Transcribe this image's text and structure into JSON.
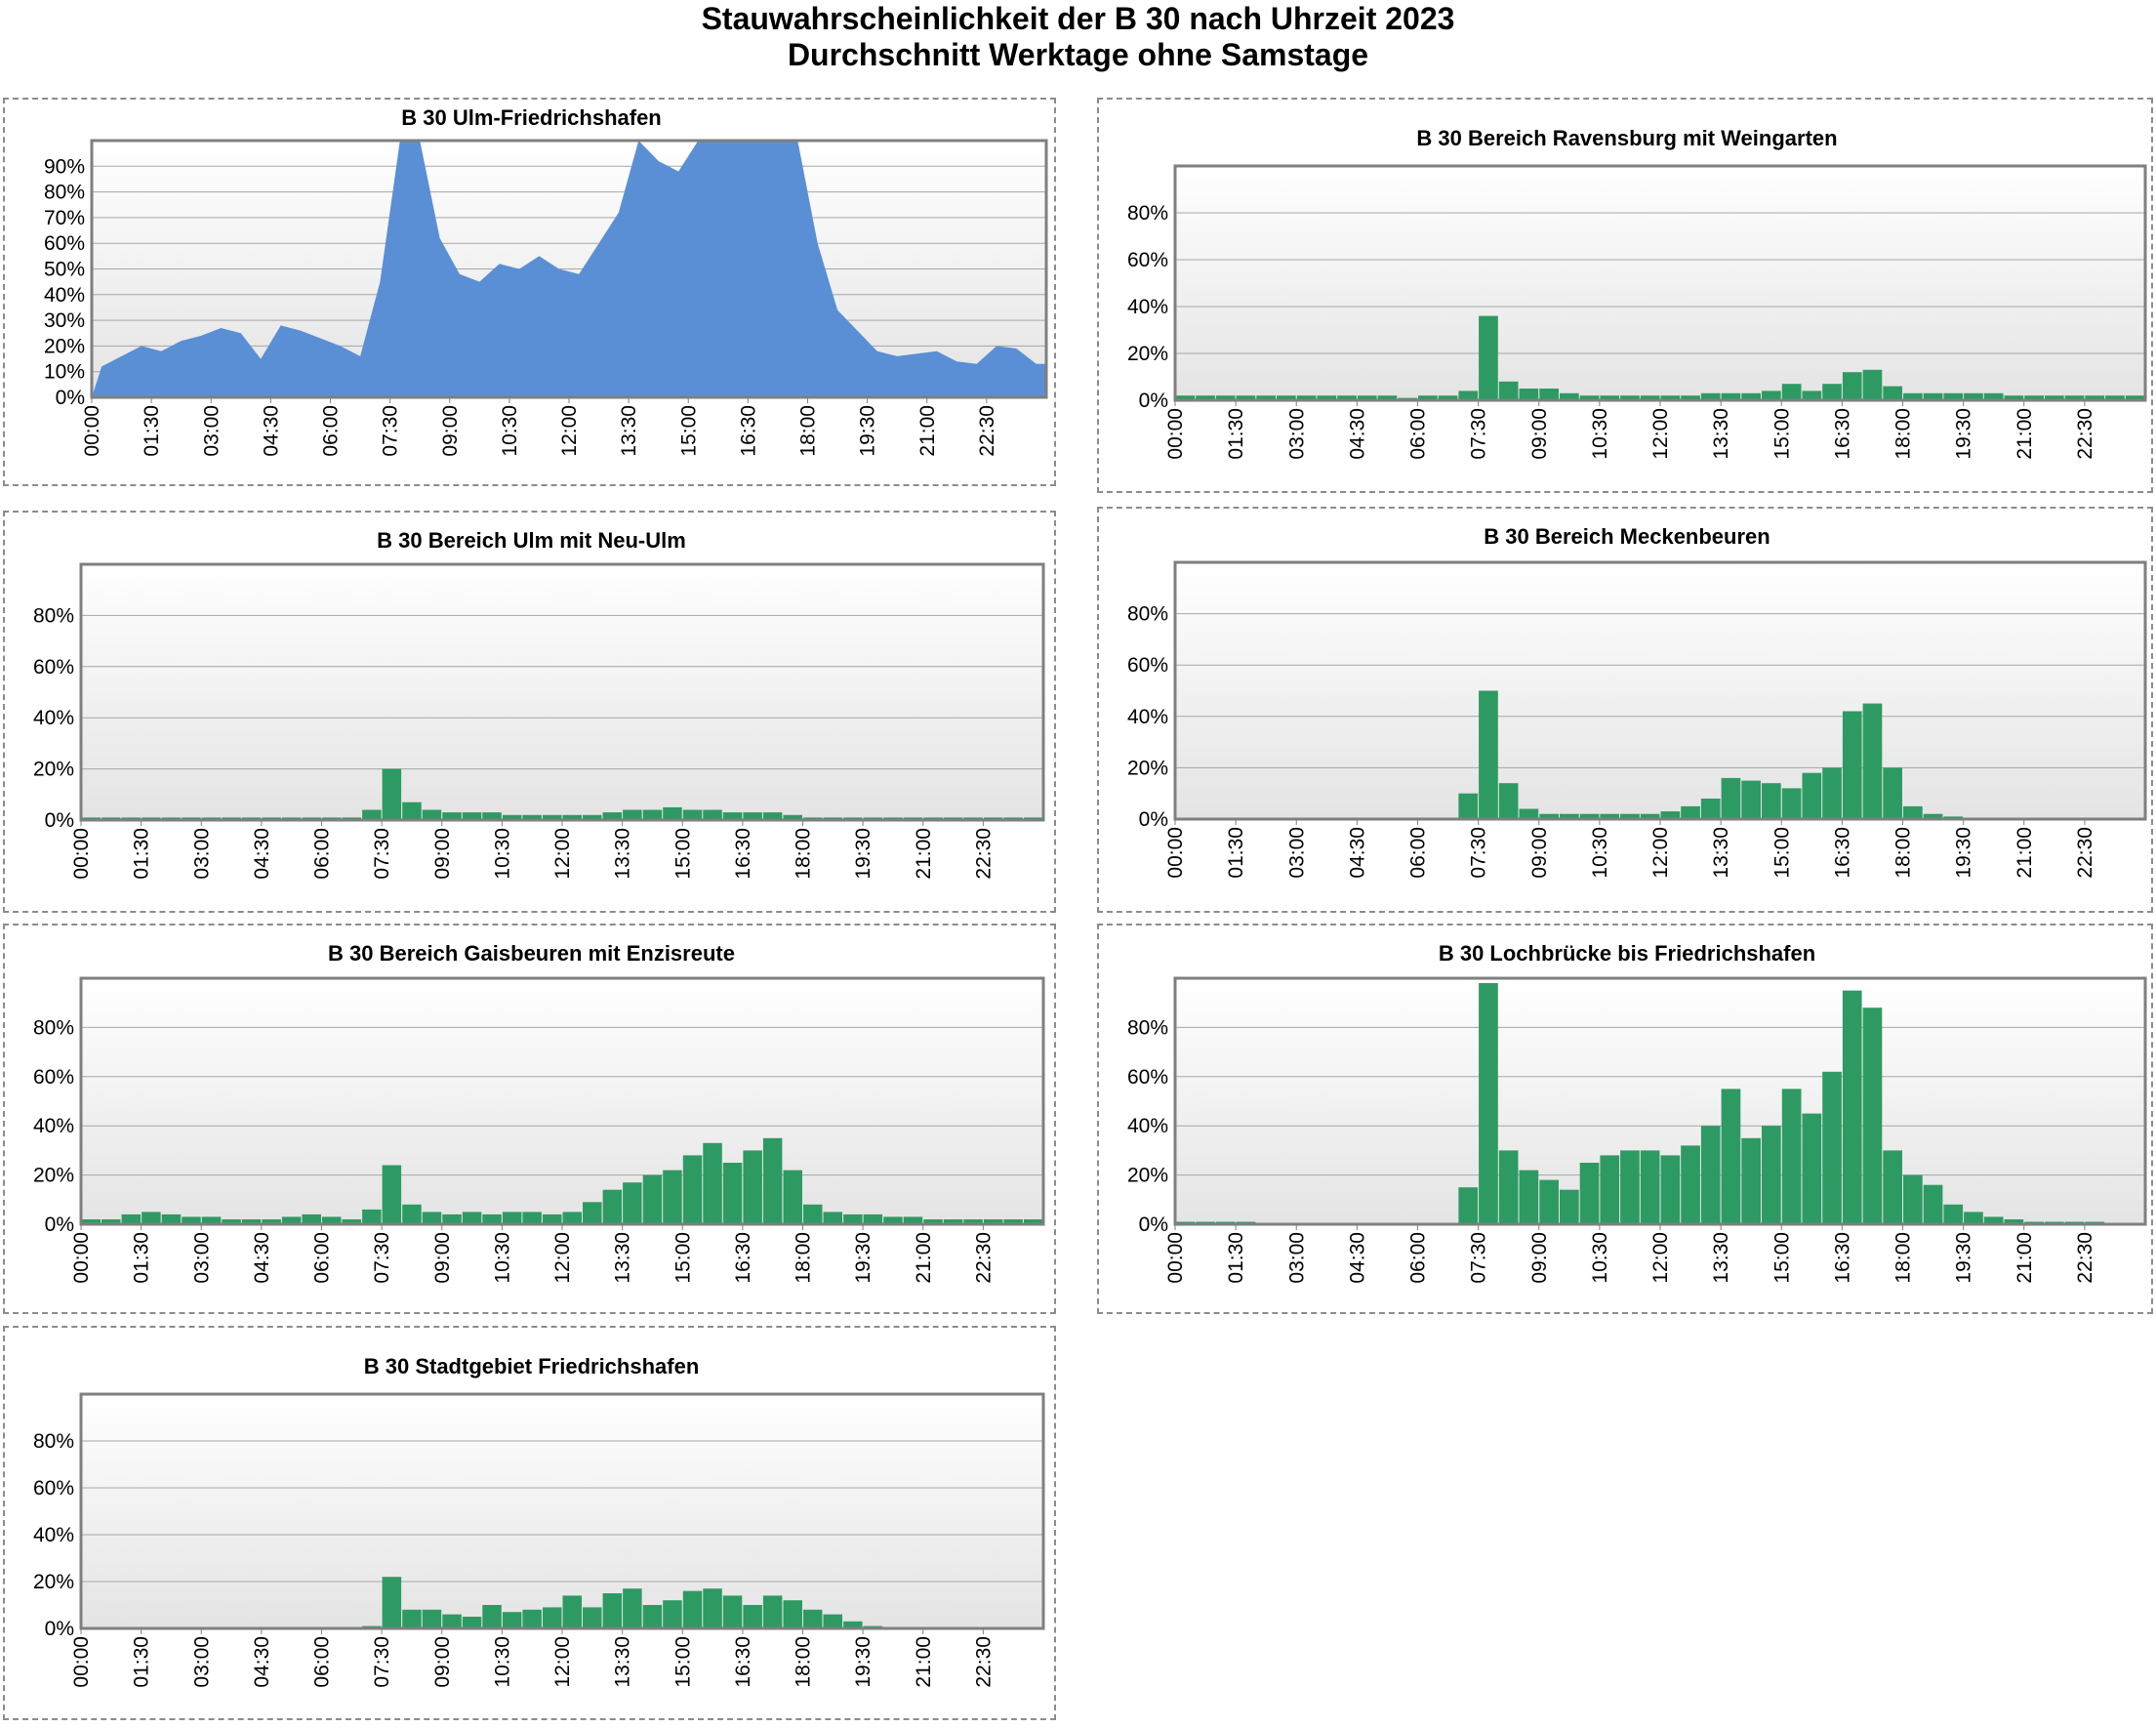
{
  "title": "Stauwahrscheinlichkeit der B 30 nach Uhrzeit 2023",
  "subtitle": "Durchschnitt Werktage ohne Samstage",
  "colors": {
    "blue": "#5a8fd6",
    "green": "#2e9a63",
    "frame": "#7f7f7f",
    "grid": "#a6a6a6"
  },
  "chart_data": [
    {
      "type": "area",
      "title": "B 30 Ulm-Friedrichshafen",
      "color": "#5a8fd6",
      "ylim": [
        0,
        100
      ],
      "yticks": [
        "0%",
        "10%",
        "20%",
        "30%",
        "40%",
        "50%",
        "60%",
        "70%",
        "80%",
        "90%"
      ],
      "xticks": [
        "00:00",
        "01:30",
        "03:00",
        "04:30",
        "06:00",
        "07:30",
        "09:00",
        "10:30",
        "12:00",
        "13:30",
        "15:00",
        "16:30",
        "18:00",
        "19:30",
        "21:00",
        "22:30"
      ],
      "x": [
        "00:00",
        "00:30",
        "01:00",
        "01:30",
        "02:00",
        "02:30",
        "03:00",
        "03:30",
        "04:00",
        "04:30",
        "05:00",
        "05:30",
        "06:00",
        "06:30",
        "07:00",
        "07:30",
        "08:00",
        "08:30",
        "09:00",
        "09:30",
        "10:00",
        "10:30",
        "11:00",
        "11:30",
        "12:00",
        "12:30",
        "13:00",
        "13:30",
        "14:00",
        "14:30",
        "15:00",
        "15:30",
        "16:00",
        "16:30",
        "17:00",
        "17:30",
        "18:00",
        "18:30",
        "19:00",
        "19:30",
        "20:00",
        "20:30",
        "21:00",
        "21:30",
        "22:00",
        "22:30",
        "23:00",
        "23:30"
      ],
      "values": [
        12,
        16,
        20,
        18,
        22,
        24,
        27,
        25,
        15,
        28,
        26,
        23,
        20,
        16,
        45,
        100,
        100,
        62,
        48,
        45,
        52,
        50,
        55,
        50,
        48,
        60,
        72,
        100,
        92,
        88,
        100,
        100,
        100,
        100,
        100,
        100,
        60,
        34,
        26,
        18,
        16,
        17,
        18,
        14,
        13,
        20,
        19,
        13
      ]
    },
    {
      "type": "bar",
      "title": "B 30 Bereich Ravensburg mit Weingarten",
      "color": "#2e9a63",
      "ylim": [
        0,
        100
      ],
      "yticks": [
        "0%",
        "20%",
        "40%",
        "60%",
        "80%"
      ],
      "xticks": [
        "00:00",
        "01:30",
        "03:00",
        "04:30",
        "06:00",
        "07:30",
        "09:00",
        "10:30",
        "12:00",
        "13:30",
        "15:00",
        "16:30",
        "18:00",
        "19:30",
        "21:00",
        "22:30"
      ],
      "x": [
        "00:00",
        "00:30",
        "01:00",
        "01:30",
        "02:00",
        "02:30",
        "03:00",
        "03:30",
        "04:00",
        "04:30",
        "05:00",
        "05:30",
        "06:00",
        "06:30",
        "07:00",
        "07:30",
        "08:00",
        "08:30",
        "09:00",
        "09:30",
        "10:00",
        "10:30",
        "11:00",
        "11:30",
        "12:00",
        "12:30",
        "13:00",
        "13:30",
        "14:00",
        "14:30",
        "15:00",
        "15:30",
        "16:00",
        "16:30",
        "17:00",
        "17:30",
        "18:00",
        "18:30",
        "19:00",
        "19:30",
        "20:00",
        "20:30",
        "21:00",
        "21:30",
        "22:00",
        "22:30",
        "23:00",
        "23:30"
      ],
      "values": [
        2,
        2,
        2,
        2,
        2,
        2,
        2,
        2,
        2,
        2,
        2,
        1,
        2,
        2,
        4,
        36,
        8,
        5,
        5,
        3,
        2,
        2,
        2,
        2,
        2,
        2,
        3,
        3,
        3,
        4,
        7,
        4,
        7,
        12,
        13,
        6,
        3,
        3,
        3,
        3,
        3,
        2,
        2,
        2,
        2,
        2,
        2,
        2
      ]
    },
    {
      "type": "bar",
      "title": "B 30 Bereich Ulm mit Neu-Ulm",
      "color": "#2e9a63",
      "ylim": [
        0,
        100
      ],
      "yticks": [
        "0%",
        "20%",
        "40%",
        "60%",
        "80%"
      ],
      "xticks": [
        "00:00",
        "01:30",
        "03:00",
        "04:30",
        "06:00",
        "07:30",
        "09:00",
        "10:30",
        "12:00",
        "13:30",
        "15:00",
        "16:30",
        "18:00",
        "19:30",
        "21:00",
        "22:30"
      ],
      "x": [
        "00:00",
        "00:30",
        "01:00",
        "01:30",
        "02:00",
        "02:30",
        "03:00",
        "03:30",
        "04:00",
        "04:30",
        "05:00",
        "05:30",
        "06:00",
        "06:30",
        "07:00",
        "07:30",
        "08:00",
        "08:30",
        "09:00",
        "09:30",
        "10:00",
        "10:30",
        "11:00",
        "11:30",
        "12:00",
        "12:30",
        "13:00",
        "13:30",
        "14:00",
        "14:30",
        "15:00",
        "15:30",
        "16:00",
        "16:30",
        "17:00",
        "17:30",
        "18:00",
        "18:30",
        "19:00",
        "19:30",
        "20:00",
        "20:30",
        "21:00",
        "21:30",
        "22:00",
        "22:30",
        "23:00",
        "23:30"
      ],
      "values": [
        1,
        1,
        1,
        1,
        1,
        1,
        1,
        1,
        1,
        1,
        1,
        1,
        1,
        1,
        4,
        20,
        7,
        4,
        3,
        3,
        3,
        2,
        2,
        2,
        2,
        2,
        3,
        4,
        4,
        5,
        4,
        4,
        3,
        3,
        3,
        2,
        1,
        1,
        1,
        1,
        1,
        1,
        1,
        1,
        1,
        1,
        1,
        1
      ]
    },
    {
      "type": "bar",
      "title": "B 30 Bereich Meckenbeuren",
      "color": "#2e9a63",
      "ylim": [
        0,
        100
      ],
      "yticks": [
        "0%",
        "20%",
        "40%",
        "60%",
        "80%"
      ],
      "xticks": [
        "00:00",
        "01:30",
        "03:00",
        "04:30",
        "06:00",
        "07:30",
        "09:00",
        "10:30",
        "12:00",
        "13:30",
        "15:00",
        "16:30",
        "18:00",
        "19:30",
        "21:00",
        "22:30"
      ],
      "x": [
        "00:00",
        "00:30",
        "01:00",
        "01:30",
        "02:00",
        "02:30",
        "03:00",
        "03:30",
        "04:00",
        "04:30",
        "05:00",
        "05:30",
        "06:00",
        "06:30",
        "07:00",
        "07:30",
        "08:00",
        "08:30",
        "09:00",
        "09:30",
        "10:00",
        "10:30",
        "11:00",
        "11:30",
        "12:00",
        "12:30",
        "13:00",
        "13:30",
        "14:00",
        "14:30",
        "15:00",
        "15:30",
        "16:00",
        "16:30",
        "17:00",
        "17:30",
        "18:00",
        "18:30",
        "19:00",
        "19:30",
        "20:00",
        "20:30",
        "21:00",
        "21:30",
        "22:00",
        "22:30",
        "23:00",
        "23:30"
      ],
      "values": [
        0,
        0,
        0,
        0,
        0,
        0,
        0,
        0,
        0,
        0,
        0,
        0,
        0,
        0,
        10,
        50,
        14,
        4,
        2,
        2,
        2,
        2,
        2,
        2,
        3,
        5,
        8,
        16,
        15,
        14,
        12,
        18,
        20,
        42,
        45,
        20,
        5,
        2,
        1,
        0,
        0,
        0,
        0,
        0,
        0,
        0,
        0,
        0
      ]
    },
    {
      "type": "bar",
      "title": "B 30 Bereich Gaisbeuren mit Enzisreute",
      "color": "#2e9a63",
      "ylim": [
        0,
        100
      ],
      "yticks": [
        "0%",
        "20%",
        "40%",
        "60%",
        "80%"
      ],
      "xticks": [
        "00:00",
        "01:30",
        "03:00",
        "04:30",
        "06:00",
        "07:30",
        "09:00",
        "10:30",
        "12:00",
        "13:30",
        "15:00",
        "16:30",
        "18:00",
        "19:30",
        "21:00",
        "22:30"
      ],
      "x": [
        "00:00",
        "00:30",
        "01:00",
        "01:30",
        "02:00",
        "02:30",
        "03:00",
        "03:30",
        "04:00",
        "04:30",
        "05:00",
        "05:30",
        "06:00",
        "06:30",
        "07:00",
        "07:30",
        "08:00",
        "08:30",
        "09:00",
        "09:30",
        "10:00",
        "10:30",
        "11:00",
        "11:30",
        "12:00",
        "12:30",
        "13:00",
        "13:30",
        "14:00",
        "14:30",
        "15:00",
        "15:30",
        "16:00",
        "16:30",
        "17:00",
        "17:30",
        "18:00",
        "18:30",
        "19:00",
        "19:30",
        "20:00",
        "20:30",
        "21:00",
        "21:30",
        "22:00",
        "22:30",
        "23:00",
        "23:30"
      ],
      "values": [
        2,
        2,
        4,
        5,
        4,
        3,
        3,
        2,
        2,
        2,
        3,
        4,
        3,
        2,
        6,
        24,
        8,
        5,
        4,
        5,
        4,
        5,
        5,
        4,
        5,
        9,
        14,
        17,
        20,
        22,
        28,
        33,
        25,
        30,
        35,
        22,
        8,
        5,
        4,
        4,
        3,
        3,
        2,
        2,
        2,
        2,
        2,
        2
      ]
    },
    {
      "type": "bar",
      "title": "B 30 Lochbrücke bis Friedrichshafen",
      "color": "#2e9a63",
      "ylim": [
        0,
        100
      ],
      "yticks": [
        "0%",
        "20%",
        "40%",
        "60%",
        "80%"
      ],
      "xticks": [
        "00:00",
        "01:30",
        "03:00",
        "04:30",
        "06:00",
        "07:30",
        "09:00",
        "10:30",
        "12:00",
        "13:30",
        "15:00",
        "16:30",
        "18:00",
        "19:30",
        "21:00",
        "22:30"
      ],
      "x": [
        "00:00",
        "00:30",
        "01:00",
        "01:30",
        "02:00",
        "02:30",
        "03:00",
        "03:30",
        "04:00",
        "04:30",
        "05:00",
        "05:30",
        "06:00",
        "06:30",
        "07:00",
        "07:30",
        "08:00",
        "08:30",
        "09:00",
        "09:30",
        "10:00",
        "10:30",
        "11:00",
        "11:30",
        "12:00",
        "12:30",
        "13:00",
        "13:30",
        "14:00",
        "14:30",
        "15:00",
        "15:30",
        "16:00",
        "16:30",
        "17:00",
        "17:30",
        "18:00",
        "18:30",
        "19:00",
        "19:30",
        "20:00",
        "20:30",
        "21:00",
        "21:30",
        "22:00",
        "22:30",
        "23:00",
        "23:30"
      ],
      "values": [
        1,
        1,
        1,
        1,
        0,
        0,
        0,
        0,
        0,
        0,
        0,
        0,
        0,
        0,
        15,
        98,
        30,
        22,
        18,
        14,
        25,
        28,
        30,
        30,
        28,
        32,
        40,
        55,
        35,
        40,
        55,
        45,
        62,
        95,
        88,
        30,
        20,
        16,
        8,
        5,
        3,
        2,
        1,
        1,
        1,
        1,
        0,
        0
      ]
    },
    {
      "type": "bar",
      "title": "B 30 Stadtgebiet Friedrichshafen",
      "color": "#2e9a63",
      "ylim": [
        0,
        100
      ],
      "yticks": [
        "0%",
        "20%",
        "40%",
        "60%",
        "80%"
      ],
      "xticks": [
        "00:00",
        "01:30",
        "03:00",
        "04:30",
        "06:00",
        "07:30",
        "09:00",
        "10:30",
        "12:00",
        "13:30",
        "15:00",
        "16:30",
        "18:00",
        "19:30",
        "21:00",
        "22:30"
      ],
      "x": [
        "00:00",
        "00:30",
        "01:00",
        "01:30",
        "02:00",
        "02:30",
        "03:00",
        "03:30",
        "04:00",
        "04:30",
        "05:00",
        "05:30",
        "06:00",
        "06:30",
        "07:00",
        "07:30",
        "08:00",
        "08:30",
        "09:00",
        "09:30",
        "10:00",
        "10:30",
        "11:00",
        "11:30",
        "12:00",
        "12:30",
        "13:00",
        "13:30",
        "14:00",
        "14:30",
        "15:00",
        "15:30",
        "16:00",
        "16:30",
        "17:00",
        "17:30",
        "18:00",
        "18:30",
        "19:00",
        "19:30",
        "20:00",
        "20:30",
        "21:00",
        "21:30",
        "22:00",
        "22:30",
        "23:00",
        "23:30"
      ],
      "values": [
        0,
        0,
        0,
        0,
        0,
        0,
        0,
        0,
        0,
        0,
        0,
        0,
        0,
        0,
        1,
        22,
        8,
        8,
        6,
        5,
        10,
        7,
        8,
        9,
        14,
        9,
        15,
        17,
        10,
        12,
        16,
        17,
        14,
        10,
        14,
        12,
        8,
        6,
        3,
        1,
        0,
        0,
        0,
        0,
        0,
        0,
        0,
        0
      ]
    }
  ]
}
